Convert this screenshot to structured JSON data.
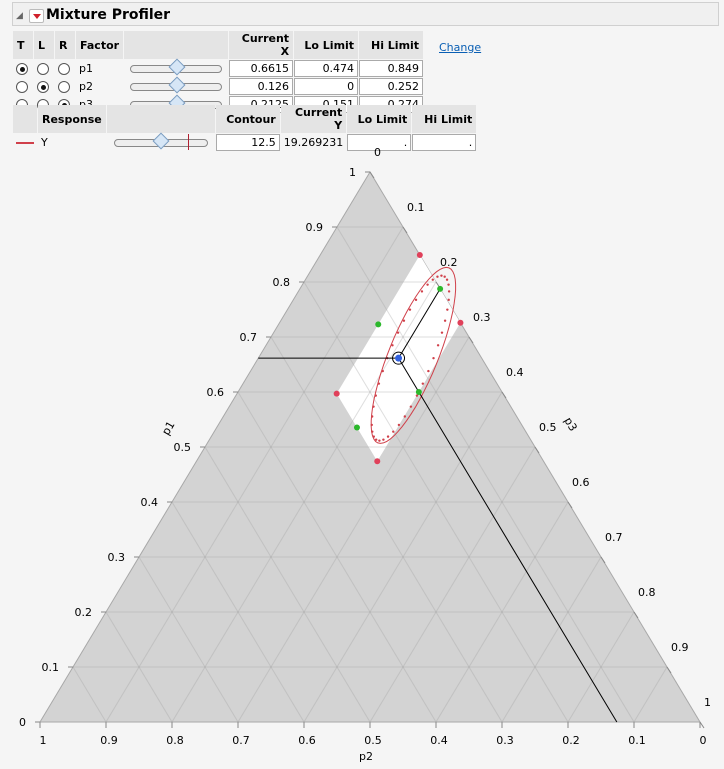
{
  "title": "Mixture Profiler",
  "factor_table": {
    "headers": [
      "T",
      "L",
      "R",
      "Factor",
      "",
      "Current X",
      "Lo Limit",
      "Hi Limit"
    ],
    "rows": [
      {
        "factor": "p1",
        "current_x": "0.6615",
        "lo": "0.474",
        "hi": "0.849",
        "selected": "T",
        "slider": 0.5
      },
      {
        "factor": "p2",
        "current_x": "0.126",
        "lo": "0",
        "hi": "0.252",
        "selected": "L",
        "slider": 0.5
      },
      {
        "factor": "p3",
        "current_x": "0.2125",
        "lo": "0.151",
        "hi": "0.274",
        "selected": "R",
        "slider": 0.5
      }
    ]
  },
  "change_link": "Change",
  "response_table": {
    "headers": [
      "Response",
      "Contour",
      "Current Y",
      "Lo Limit",
      "Hi Limit"
    ],
    "row": {
      "name": "Y",
      "contour": "12.5",
      "current_y": "19.269231",
      "lo": ".",
      "hi": ".",
      "color": "#d0404a",
      "slider": 0.45
    }
  },
  "ternary": {
    "axes": {
      "left": "p1",
      "bottom": "p2",
      "right": "p3"
    },
    "ticks": [
      "0",
      "0.1",
      "0.2",
      "0.3",
      "0.4",
      "0.5",
      "0.6",
      "0.7",
      "0.8",
      "0.9",
      "1"
    ],
    "current": {
      "p1": 0.6615,
      "p2": 0.126,
      "p3": 0.2125
    },
    "limits": {
      "p1": [
        0.474,
        0.849
      ],
      "p2": [
        0,
        0.252
      ],
      "p3": [
        0.151,
        0.274
      ]
    },
    "colors": {
      "infeasible": "#d3d3d3",
      "vertex": "#e0405a",
      "midpoint": "#2cb82c",
      "current": "#3060e0",
      "contour": "#d0404a"
    }
  }
}
